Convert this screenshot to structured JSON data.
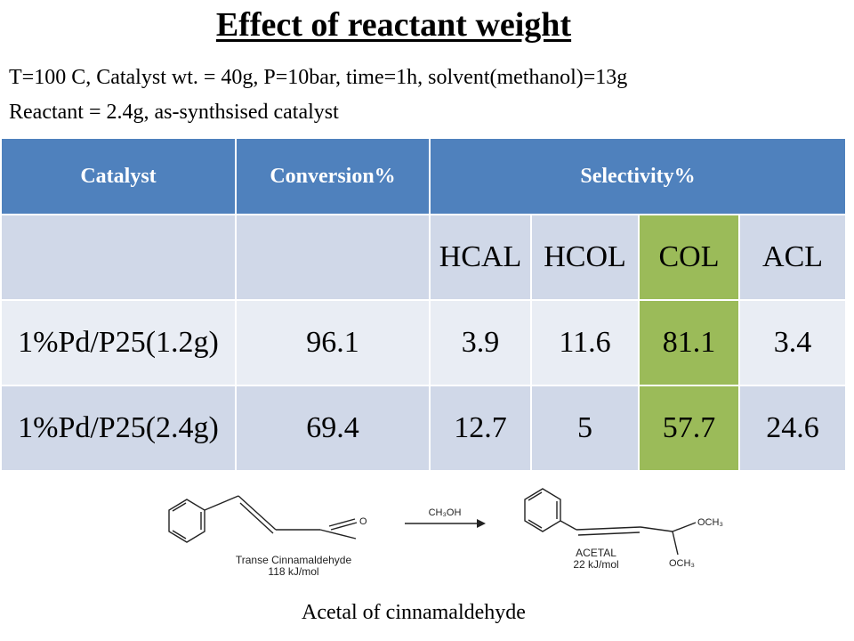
{
  "title": "Effect of reactant weight",
  "conditions": {
    "line1": "T=100 C, Catalyst wt. = 40g, P=10bar, time=1h, solvent(methanol)=13g",
    "line2": "Reactant = 2.4g, as-synthsised catalyst"
  },
  "table": {
    "headers": {
      "catalyst": "Catalyst",
      "conversion": "Conversion%",
      "selectivity": "Selectivity%"
    },
    "subheaders": [
      "HCAL",
      "HCOL",
      "COL",
      "ACL"
    ],
    "rows": [
      {
        "catalyst": "1%Pd/P25(1.2g)",
        "conversion": "96.1",
        "hcal": "3.9",
        "hcol": "11.6",
        "col": "81.1",
        "acl": "3.4"
      },
      {
        "catalyst": "1%Pd/P25(2.4g)",
        "conversion": "69.4",
        "hcal": "12.7",
        "hcol": "5",
        "col": "57.7",
        "acl": "24.6"
      }
    ],
    "header_color": "#4f81bd",
    "highlight_color": "#9bbb59"
  },
  "scheme": {
    "reactant_name": "Transe Cinnamaldehyde",
    "reactant_energy": "118 kJ/mol",
    "reactant_o": "O",
    "reagent": "CH₃OH",
    "product_name": "ACETAL",
    "product_energy": "22 kJ/mol",
    "och3_top": "OCH₃",
    "och3_bottom": "OCH₃"
  },
  "caption": "Acetal of cinnamaldehyde"
}
